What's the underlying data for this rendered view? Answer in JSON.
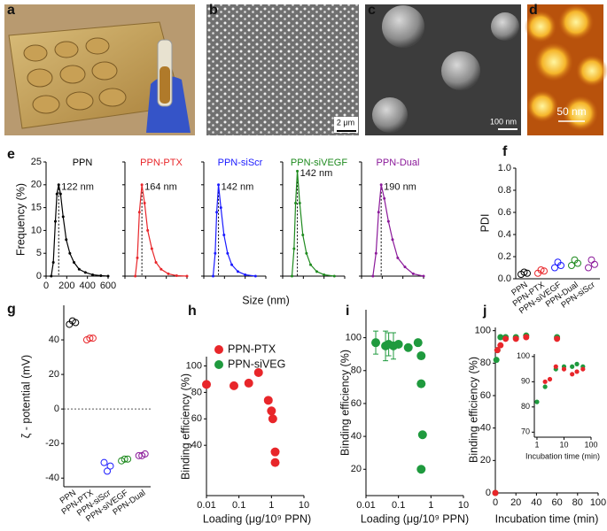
{
  "images": [
    {
      "panel": "a"
    },
    {
      "panel": "b",
      "scale_bar": "2 μm"
    },
    {
      "panel": "c",
      "scale_bar": "100 nm"
    },
    {
      "panel": "d",
      "scale_bar": "50 nm"
    }
  ],
  "chart_data": [
    {
      "type": "line",
      "panel": "e",
      "ylabel": "Frequency (%)",
      "xlabel": "Size (nm)",
      "xlim": [
        0,
        600
      ],
      "xticks": [
        0,
        200,
        400,
        600
      ],
      "ylim": [
        0,
        25
      ],
      "yticks": [
        0,
        5,
        10,
        15,
        20,
        25
      ],
      "series": [
        {
          "name": "PPN",
          "color": "#000000",
          "annotation": "122 nm",
          "x": [
            50,
            70,
            90,
            105,
            122,
            140,
            165,
            195,
            230,
            270,
            320,
            380,
            450,
            530,
            600
          ],
          "values": [
            0,
            3,
            12,
            18,
            20,
            18,
            13,
            8,
            5,
            3,
            1.5,
            0.8,
            0.3,
            0.1,
            0
          ]
        },
        {
          "name": "PPN-PTX",
          "color": "#e8262a",
          "annotation": "164 nm",
          "x": [
            100,
            120,
            140,
            164,
            190,
            220,
            260,
            300,
            350,
            420,
            500,
            600
          ],
          "values": [
            0,
            4,
            14,
            20,
            16,
            10,
            6,
            3,
            1.5,
            0.5,
            0.1,
            0
          ]
        },
        {
          "name": "PPN-siScr",
          "color": "#1a1aff",
          "annotation": "142 nm",
          "x": [
            90,
            110,
            125,
            142,
            165,
            195,
            230,
            270,
            330,
            400,
            500
          ],
          "values": [
            0,
            5,
            14,
            20,
            15,
            9,
            5,
            2.5,
            1,
            0.3,
            0
          ]
        },
        {
          "name": "PPN-siVEGF",
          "color": "#1e8a1e",
          "annotation": "142 nm",
          "x": [
            90,
            110,
            125,
            142,
            165,
            195,
            230,
            270,
            330,
            400,
            500
          ],
          "values": [
            0,
            6,
            16,
            23,
            16,
            9,
            5,
            2.5,
            1,
            0.3,
            0
          ]
        },
        {
          "name": "PPN-Dual",
          "color": "#8b1a9a",
          "annotation": "190 nm",
          "x": [
            110,
            140,
            165,
            190,
            220,
            260,
            300,
            350,
            420,
            500,
            600
          ],
          "values": [
            0,
            5,
            14,
            20,
            17,
            12,
            8,
            4,
            2,
            0.5,
            0
          ]
        }
      ]
    },
    {
      "type": "dot",
      "panel": "f",
      "ylabel": "PDI",
      "categories": [
        "PPN",
        "PPN-PTX",
        "PPN-siVEGF",
        "PPN-Dual",
        "PPN-siScr"
      ],
      "colors": [
        "#000000",
        "#e8262a",
        "#1a1aff",
        "#1e8a1e",
        "#8b1a9a"
      ],
      "values": [
        [
          0.04,
          0.06,
          0.05
        ],
        [
          0.05,
          0.08,
          0.07
        ],
        [
          0.1,
          0.15,
          0.12
        ],
        [
          0.12,
          0.17,
          0.14
        ],
        [
          0.1,
          0.17,
          0.13
        ]
      ],
      "ylim": [
        0,
        1
      ],
      "yticks": [
        {
          "value": 0,
          "label": "0.0"
        },
        0.2,
        0.4,
        0.6,
        0.8,
        {
          "value": 1,
          "label": "1.0"
        }
      ]
    },
    {
      "type": "dot",
      "panel": "g",
      "ylabel": "ζ - potential (mV)",
      "categories": [
        "PPN",
        "PPN-PTX",
        "PPN-siScr",
        "PPN-siVEGF",
        "PPN-Dual"
      ],
      "colors": [
        "#000000",
        "#e8262a",
        "#1a1aff",
        "#1e8a1e",
        "#8b1a9a"
      ],
      "values": [
        [
          49,
          51,
          50
        ],
        [
          40,
          41,
          41
        ],
        [
          -31,
          -36,
          -33
        ],
        [
          -30,
          -29,
          -29
        ],
        [
          -27,
          -27,
          -26
        ]
      ],
      "ylim": [
        -45,
        60
      ],
      "yticks": [
        -40,
        -20,
        0,
        20,
        40
      ],
      "zero_line": true
    },
    {
      "type": "scatter",
      "panel": "h",
      "ylabel": "Binding efficiency (%)",
      "xlabel": "Loading (μg/10⁹ PPN)",
      "xlog": true,
      "xlim": [
        0.01,
        10
      ],
      "xticks": [
        0.01,
        0.1,
        1,
        10
      ],
      "ylim": [
        2,
        107
      ],
      "yticks": [
        40,
        60,
        80,
        100
      ],
      "legend": "top-left",
      "series": [
        {
          "name": "PPN-PTX",
          "color": "#e8262a",
          "x": [
            0.01,
            0.07,
            0.2,
            0.4,
            0.8,
            1.0,
            1.1,
            1.3,
            1.3
          ],
          "values": [
            86,
            85,
            87,
            95,
            74,
            66,
            60,
            35,
            27
          ]
        },
        {
          "name": "PPN-siVEG",
          "color": "#1f9a3e",
          "x": [],
          "values": []
        }
      ]
    },
    {
      "type": "scatter",
      "panel": "i",
      "ylabel": "Binding efficiency (%)",
      "xlabel": "Loading (μg/10⁹ PPN)",
      "xlog": true,
      "xlim": [
        0.01,
        10
      ],
      "xticks": [
        0.01,
        0.1,
        1,
        10
      ],
      "ylim": [
        4,
        117
      ],
      "yticks": [
        20,
        40,
        60,
        80,
        100
      ],
      "series": [
        {
          "color": "#1f9a3e",
          "x": [
            0.02,
            0.04,
            0.05,
            0.07,
            0.1,
            0.2,
            0.4,
            0.5,
            0.5,
            0.55,
            0.5
          ],
          "values": [
            97,
            95,
            96,
            95,
            96,
            94,
            97,
            89,
            72,
            41,
            20
          ],
          "errors": [
            7,
            9,
            7,
            8,
            null,
            null,
            null,
            null,
            null,
            null,
            null
          ]
        }
      ]
    },
    {
      "type": "scatter",
      "panel": "j",
      "ylabel": "Binding efficiency (%)",
      "xlabel": "Incubation time (min)",
      "xlim": [
        0,
        100
      ],
      "xticks": [
        0,
        20,
        40,
        60,
        80,
        100
      ],
      "ylim": [
        0,
        102
      ],
      "yticks": [
        0,
        20,
        40,
        60,
        80,
        100
      ],
      "series": [
        {
          "color": "#1f9a3e",
          "x": [
            0,
            1,
            2,
            5,
            10,
            20,
            30,
            60
          ],
          "values": [
            0,
            82,
            88,
            96,
            96,
            96,
            97,
            96
          ]
        },
        {
          "color": "#e8262a",
          "x": [
            0,
            2,
            5,
            10,
            20,
            30,
            60
          ],
          "values": [
            0,
            88,
            91,
            95,
            95,
            96,
            95
          ]
        }
      ]
    },
    {
      "type": "scatter",
      "xlabel": "Incubation time (min)",
      "xlog": true,
      "xlim": [
        0.8,
        100
      ],
      "xticks": [
        1,
        10,
        100
      ],
      "ylim": [
        68,
        101
      ],
      "yticks": [
        70,
        80,
        90,
        100
      ],
      "series": [
        {
          "color": "#1f9a3e",
          "x": [
            1,
            2,
            5,
            10,
            20,
            30,
            50
          ],
          "values": [
            82,
            88,
            95,
            96,
            96,
            97,
            96
          ]
        },
        {
          "color": "#e8262a",
          "x": [
            2,
            3,
            5,
            10,
            20,
            30,
            50
          ],
          "values": [
            90,
            91,
            96,
            95,
            93,
            94,
            95
          ]
        }
      ]
    }
  ]
}
